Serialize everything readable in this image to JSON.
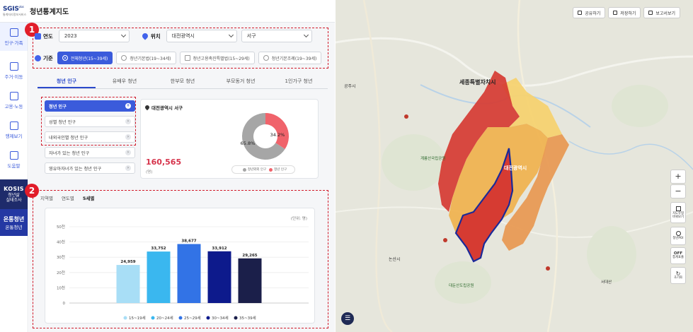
{
  "header": {
    "logo_main": "SGIS",
    "logo_plus": "plus",
    "logo_sub": "통계지리정보서비스",
    "title": "청년통계지도"
  },
  "nav": {
    "items": [
      {
        "label": "인구·가족",
        "icon": "people-icon"
      },
      {
        "label": "주거·이동",
        "icon": "house-move-icon"
      },
      {
        "label": "고용·노동",
        "icon": "briefcase-icon"
      },
      {
        "label": "행제보기",
        "icon": "book-icon"
      },
      {
        "label": "도움말",
        "icon": "help-icon"
      }
    ],
    "kosis_title": "KOSIS",
    "kosis_sub1": "청년삶",
    "kosis_sub2": "실태조사",
    "campaign_title": "온통청년",
    "campaign_sub": "온통청년"
  },
  "filters": {
    "year_label": "연도",
    "year_value": "2023",
    "location_label": "위치",
    "city_value": "대전광역시",
    "district_value": "서구",
    "criteria_label": "기준",
    "options": [
      {
        "label": "전체청년(15~39세)",
        "selected": true,
        "type": "radio"
      },
      {
        "label": "청년기본법(19~34세)",
        "selected": false,
        "type": "radio"
      },
      {
        "label": "청년고용촉진특별법(15~29세)",
        "selected": false,
        "type": "checkbox"
      },
      {
        "label": "청년기본조례(19~39세)",
        "selected": false,
        "type": "radio"
      }
    ]
  },
  "badges": {
    "one": "1",
    "two": "2"
  },
  "tabs": [
    "청년 인구",
    "유배우 청년",
    "한부모 청년",
    "부모동거 청년",
    "1인가구 청년"
  ],
  "categories": [
    {
      "label": "청년 인구",
      "selected": true
    },
    {
      "label": "성별 청년 인구",
      "selected": false
    },
    {
      "label": "내외국인별 청년 인구",
      "selected": false
    },
    {
      "label": "자녀가 있는 청년 인구",
      "selected": false
    },
    {
      "label": "영유아자녀가 있는 청년 인구",
      "selected": false
    }
  ],
  "info": {
    "region": "대전광역시 서구",
    "population": "160,565",
    "unit": "(명)",
    "donut": {
      "other_pct": 65.8,
      "youth_pct": 34.2,
      "other_label": "65.8%",
      "youth_label": "34.2%"
    },
    "legend_other": "청년외외 인구",
    "legend_youth": "청년 인구",
    "colors": {
      "other": "#a6a6a6",
      "youth": "#f0636b"
    }
  },
  "sub_tabs": [
    {
      "label": "지역별",
      "selected": false
    },
    {
      "label": "연도별",
      "selected": false
    },
    {
      "label": "5세별",
      "selected": true
    }
  ],
  "chart_data": {
    "type": "bar",
    "categories": [
      "15~19세",
      "20~24세",
      "25~29세",
      "30~34세",
      "35~39세"
    ],
    "values": [
      24959,
      33752,
      38677,
      33912,
      29265
    ],
    "value_labels": [
      "24,959",
      "33,752",
      "38,677",
      "33,912",
      "29,265"
    ],
    "colors": [
      "#a8def6",
      "#3ab7ef",
      "#3273e6",
      "#0d1a8c",
      "#1b1f4a"
    ],
    "ylim": [
      0,
      50000
    ],
    "y_ticks": [
      0,
      10000,
      20000,
      30000,
      40000,
      50000
    ],
    "y_tick_labels": [
      "0",
      "10천",
      "20천",
      "30천",
      "40천",
      "50천"
    ],
    "unit_label": "(단위: 명)",
    "legend_position": "bottom",
    "grid": true
  },
  "map": {
    "share_label": "공유하기",
    "save_label": "저장하기",
    "report_label": "보고서보기",
    "zoom_in": "+",
    "zoom_out": "−",
    "tool1_line1": "지도유형",
    "tool1_line2": "바꿔보기",
    "tool2_label": "청년POI",
    "tool3_top": "OFF",
    "tool3_bottom": "통계표출",
    "tool4_label": "초기화",
    "place_sejong": "세종특별자치시",
    "place_daejeon": "대전광역시",
    "place_nonsan": "논산시",
    "place_gyeryong": "계룡산국립공원",
    "place_gongju": "공주시",
    "place_seodae": "서대산",
    "place_daedun": "대둔산도립공원"
  }
}
